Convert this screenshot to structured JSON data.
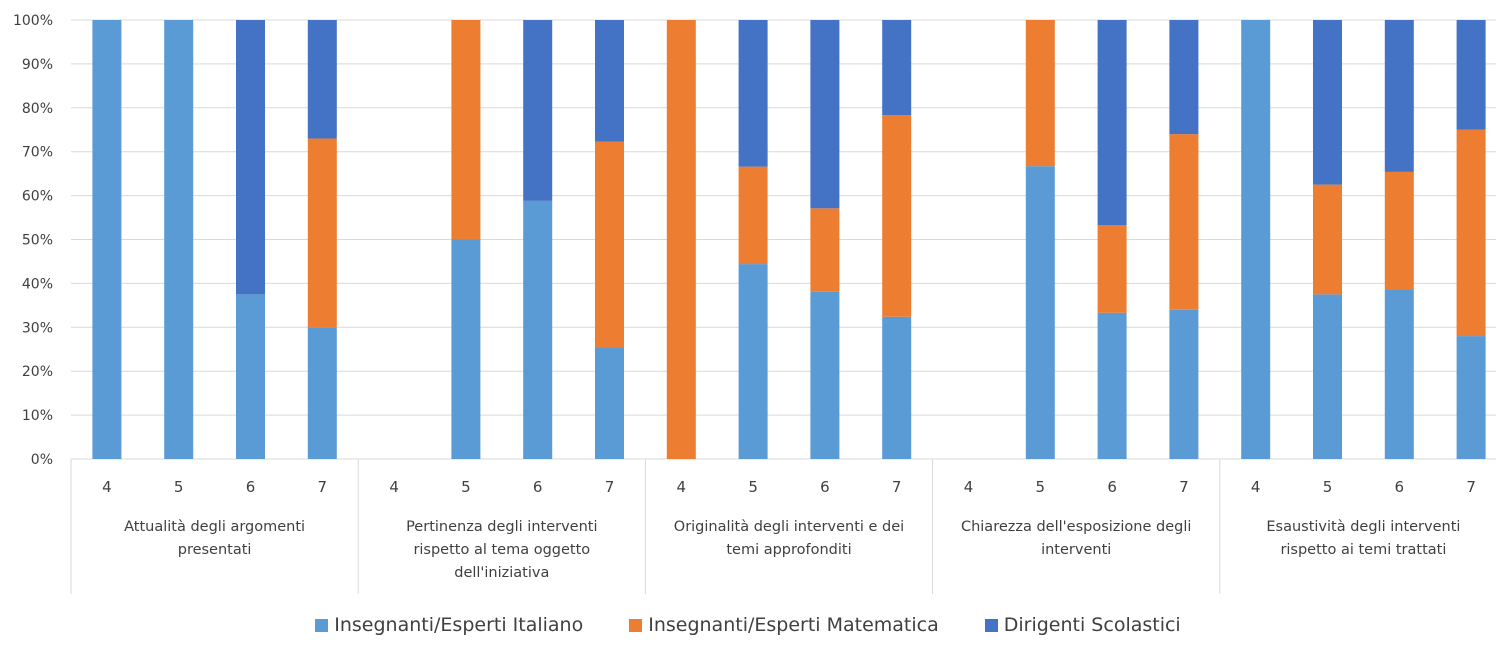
{
  "chart_data": {
    "type": "bar",
    "stacked": "percent",
    "ylim": [
      0,
      100
    ],
    "y_ticks": [
      "0%",
      "10%",
      "20%",
      "30%",
      "40%",
      "50%",
      "60%",
      "70%",
      "80%",
      "90%",
      "100%"
    ],
    "grid": true,
    "legend_position": "bottom",
    "groups": [
      {
        "label": "Attualità degli argomenti presentati",
        "lines": [
          "Attualità degli argomenti",
          "presentati"
        ]
      },
      {
        "label": "Pertinenza degli interventi rispetto al tema oggetto dell'iniziativa",
        "lines": [
          "Pertinenza degli interventi",
          "rispetto al tema oggetto",
          "dell'iniziativa"
        ]
      },
      {
        "label": "Originalità degli interventi e dei temi approfonditi",
        "lines": [
          "Originalità degli interventi e dei",
          "temi approfonditi"
        ]
      },
      {
        "label": "Chiarezza dell'esposizione degli interventi",
        "lines": [
          "Chiarezza dell'esposizione degli",
          "interventi"
        ]
      },
      {
        "label": "Esaustività degli interventi rispetto ai temi trattati",
        "lines": [
          "Esaustività degli interventi",
          "rispetto ai temi trattati"
        ]
      }
    ],
    "categories": [
      "4",
      "5",
      "6",
      "7"
    ],
    "series": [
      {
        "name": "Insegnanti/Esperti Italiano",
        "color": "#5B9BD5",
        "values": [
          [
            100,
            100,
            37.5,
            30
          ],
          [
            0,
            50,
            58.8,
            25.5
          ],
          [
            0,
            44.4,
            38.1,
            32.4
          ],
          [
            0,
            66.7,
            33.3,
            34
          ],
          [
            100,
            37.5,
            38.5,
            28
          ]
        ]
      },
      {
        "name": "Insegnanti/Esperti Matematica",
        "color": "#ED7D31",
        "values": [
          [
            0,
            0,
            0,
            43
          ],
          [
            0,
            50,
            0,
            46.8
          ],
          [
            100,
            22.2,
            19,
            45.9
          ],
          [
            0,
            33.3,
            20,
            40
          ],
          [
            0,
            25,
            26.9,
            47
          ]
        ]
      },
      {
        "name": "Dirigenti Scolastici",
        "color": "#4472C4",
        "values": [
          [
            0,
            0,
            62.5,
            27
          ],
          [
            0,
            0,
            41.2,
            27.7
          ],
          [
            0,
            33.4,
            42.9,
            21.7
          ],
          [
            0,
            0,
            46.7,
            26
          ],
          [
            0,
            37.5,
            34.6,
            25
          ]
        ]
      }
    ]
  }
}
